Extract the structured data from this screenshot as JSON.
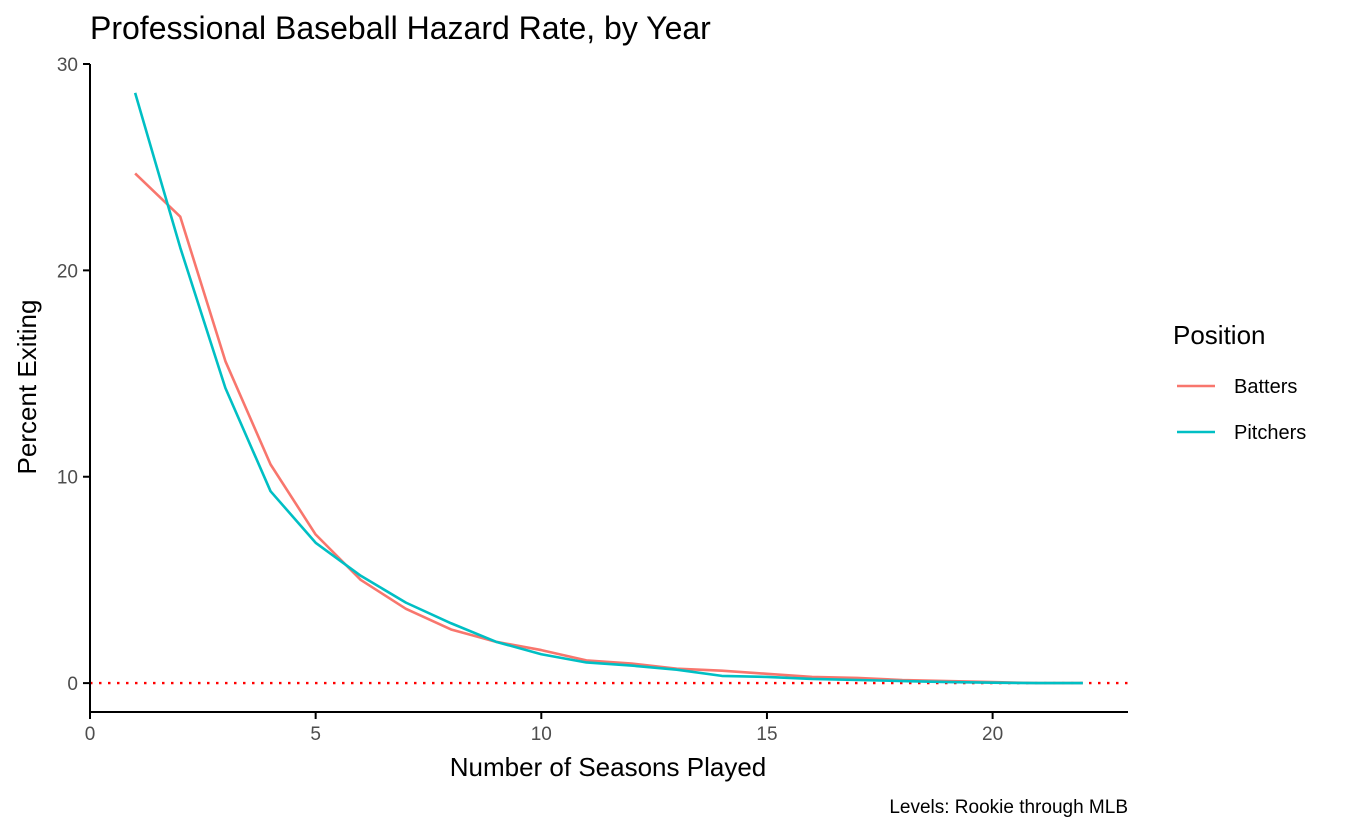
{
  "chart_data": {
    "type": "line",
    "title": "Professional Baseball Hazard Rate, by Year",
    "xlabel": "Number of Seasons Played",
    "ylabel": "Percent Exiting",
    "caption": "Levels: Rookie through MLB",
    "xlim": [
      0,
      23
    ],
    "ylim": [
      -1.4,
      30
    ],
    "x_ticks": [
      0,
      5,
      10,
      15,
      20
    ],
    "y_ticks": [
      0,
      10,
      20,
      30
    ],
    "grid": false,
    "reference_line": {
      "y": 0,
      "color": "#ff0000",
      "style": "dotted"
    },
    "legend": {
      "title": "Position",
      "placement": "right"
    },
    "x": [
      1,
      2,
      3,
      4,
      5,
      6,
      7,
      8,
      9,
      10,
      11,
      12,
      13,
      14,
      15,
      16,
      17,
      18,
      19,
      20,
      21,
      22
    ],
    "series": [
      {
        "name": "Batters",
        "color": "#f8766d",
        "values": [
          24.7,
          22.6,
          15.6,
          10.6,
          7.2,
          5.0,
          3.6,
          2.6,
          2.0,
          1.6,
          1.1,
          0.95,
          0.7,
          0.6,
          0.45,
          0.3,
          0.25,
          0.15,
          0.1,
          0.05,
          0.0,
          0.0
        ]
      },
      {
        "name": "Pitchers",
        "color": "#00bfc4",
        "values": [
          28.6,
          21.1,
          14.3,
          9.3,
          6.8,
          5.2,
          3.9,
          2.9,
          2.0,
          1.4,
          1.0,
          0.85,
          0.65,
          0.35,
          0.3,
          0.2,
          0.15,
          0.1,
          0.05,
          0.02,
          0.0,
          0.0
        ]
      }
    ]
  }
}
